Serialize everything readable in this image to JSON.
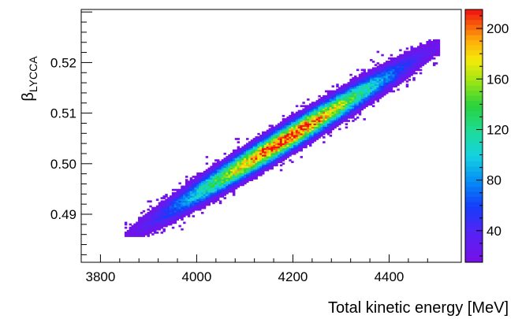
{
  "chart_data": {
    "type": "heatmap",
    "title": "",
    "xlabel": "Total kinetic energy [MeV]",
    "ylabel": {
      "symbol": "β",
      "subscript": "LYCCA"
    },
    "xlim": [
      3760,
      4550
    ],
    "ylim": [
      0.4805,
      0.5305
    ],
    "xticks": [
      {
        "value": 3800,
        "label": "3800"
      },
      {
        "value": 4000,
        "label": "4000"
      },
      {
        "value": 4200,
        "label": "4200"
      },
      {
        "value": 4400,
        "label": "4400"
      }
    ],
    "yticks": [
      {
        "value": 0.49,
        "label": "0.49"
      },
      {
        "value": 0.5,
        "label": "0.50"
      },
      {
        "value": 0.51,
        "label": "0.51"
      },
      {
        "value": 0.52,
        "label": "0.52"
      }
    ],
    "colorbar": {
      "zlim": [
        15,
        215
      ],
      "ticks": [
        {
          "value": 40,
          "label": "40"
        },
        {
          "value": 80,
          "label": "80"
        },
        {
          "value": 120,
          "label": "120"
        },
        {
          "value": 160,
          "label": "160"
        },
        {
          "value": 200,
          "label": "200"
        }
      ]
    },
    "distribution": {
      "description_only_for_rendering": false,
      "center": [
        4180,
        0.5045
      ],
      "x_span": [
        3850,
        4505
      ],
      "y_span": [
        0.4855,
        0.5245
      ],
      "peak_count": 215,
      "correlation_slope_per_MeV": 5.82e-05
    },
    "grid": false,
    "legend": "none"
  }
}
